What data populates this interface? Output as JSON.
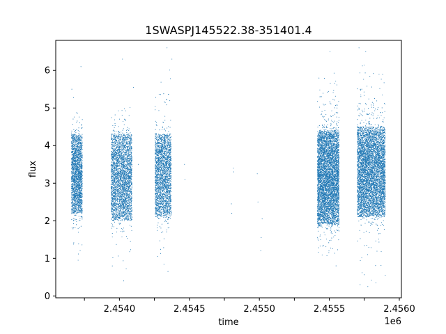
{
  "chart_data": {
    "type": "scatter",
    "title": "1SWASPJ145522.38-351401.4",
    "xlabel": "time",
    "ylabel": "flux",
    "x_offset_label": "1e6",
    "xlim": [
      2453745,
      2456215
    ],
    "ylim": [
      -0.05,
      6.8
    ],
    "x_ticks": [
      2453950,
      2454200,
      2454450,
      2454700,
      2454950,
      2455200,
      2455450,
      2455700,
      2455950,
      2456200
    ],
    "x_tick_labels": [
      "",
      "2.4540",
      "",
      "2.4545",
      "",
      "2.4550",
      "",
      "2.4555",
      "",
      "2.4560"
    ],
    "y_ticks": [
      0,
      1,
      2,
      3,
      4,
      5,
      6
    ],
    "y_tick_labels": [
      "0",
      "1",
      "2",
      "3",
      "4",
      "5",
      "6"
    ],
    "grid": false,
    "point_color": "#1f77b4",
    "series": [
      {
        "clusters": [
          {
            "x_range": [
              2453857,
              2453935
            ],
            "count": 2200,
            "core": [
              2.2,
              4.3
            ],
            "sparse": [
              1.0,
              5.5
            ]
          },
          {
            "x_range": [
              2454140,
              2454290
            ],
            "count": 3200,
            "core": [
              2.0,
              4.3
            ],
            "sparse": [
              0.4,
              5.3
            ]
          },
          {
            "x_range": [
              2454455,
              2454570
            ],
            "count": 2500,
            "core": [
              2.1,
              4.3
            ],
            "sparse": [
              0.6,
              6.6
            ]
          },
          {
            "x_range": [
              2455615,
              2455770
            ],
            "count": 5500,
            "core": [
              1.9,
              4.4
            ],
            "sparse": [
              0.8,
              6.0
            ]
          },
          {
            "x_range": [
              2455900,
              2456100
            ],
            "count": 5800,
            "core": [
              2.1,
              4.5
            ],
            "sparse": [
              0.2,
              6.6
            ]
          }
        ],
        "points": [
          {
            "x": 2453925,
            "y": 6.1
          },
          {
            "x": 2453860,
            "y": 5.5
          },
          {
            "x": 2453905,
            "y": 0.95
          },
          {
            "x": 2454230,
            "y": 0.4
          },
          {
            "x": 2454222,
            "y": 6.3
          },
          {
            "x": 2454300,
            "y": 5.55
          },
          {
            "x": 2454335,
            "y": 3.5
          },
          {
            "x": 2454540,
            "y": 6.6
          },
          {
            "x": 2454575,
            "y": 6.3
          },
          {
            "x": 2454547,
            "y": 0.65
          },
          {
            "x": 2454665,
            "y": 3.5
          },
          {
            "x": 2454668,
            "y": 3.1
          },
          {
            "x": 2455000,
            "y": 2.45
          },
          {
            "x": 2455003,
            "y": 2.2
          },
          {
            "x": 2455015,
            "y": 3.4
          },
          {
            "x": 2455017,
            "y": 3.3
          },
          {
            "x": 2455185,
            "y": 3.25
          },
          {
            "x": 2455190,
            "y": 2.5
          },
          {
            "x": 2455210,
            "y": 1.2
          },
          {
            "x": 2455213,
            "y": 1.55
          },
          {
            "x": 2455220,
            "y": 2.05
          },
          {
            "x": 2455705,
            "y": 6.5
          },
          {
            "x": 2455755,
            "y": 5.0
          },
          {
            "x": 2455748,
            "y": 0.8
          },
          {
            "x": 2455912,
            "y": 6.6
          },
          {
            "x": 2455920,
            "y": 0.3
          },
          {
            "x": 2455975,
            "y": 0.25
          },
          {
            "x": 2455960,
            "y": 6.5
          }
        ]
      }
    ]
  }
}
